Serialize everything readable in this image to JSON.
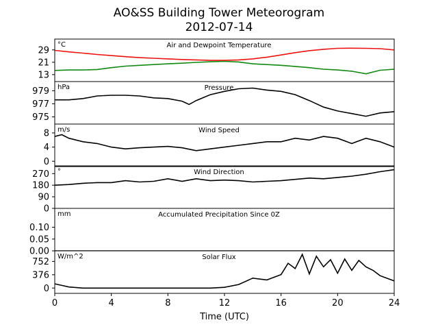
{
  "title": "AO&SS Building Tower Meteorogram",
  "subtitle": "2012-07-14",
  "chart_data": [
    {
      "type": "line",
      "title": "Air and Dewpoint Temperature",
      "unit": "°C",
      "xlabel": "",
      "ylabel": "°C",
      "xlim": [
        0,
        24
      ],
      "ylim": [
        8.5,
        36
      ],
      "yticks": [
        13,
        21,
        29
      ],
      "x": [
        0,
        1,
        2,
        3,
        4,
        5,
        6,
        7,
        8,
        9,
        10,
        11,
        12,
        13,
        14,
        15,
        16,
        17,
        18,
        19,
        20,
        21,
        22,
        23,
        24
      ],
      "series": [
        {
          "color": "#ee1111",
          "values": [
            28.7,
            27.7,
            26.9,
            26.0,
            25.3,
            24.6,
            24.0,
            23.6,
            23.2,
            22.8,
            22.5,
            22.2,
            22.2,
            22.5,
            23.2,
            24.3,
            25.7,
            27.2,
            28.5,
            29.4,
            30.0,
            30.1,
            30.0,
            29.8,
            29.0
          ]
        },
        {
          "color": "#118811",
          "values": [
            15.7,
            16.0,
            16.0,
            16.3,
            17.5,
            18.5,
            19.0,
            19.5,
            20.0,
            20.4,
            20.9,
            21.3,
            21.6,
            21.2,
            20.0,
            19.5,
            19.0,
            18.3,
            17.5,
            16.5,
            16.0,
            15.2,
            13.5,
            15.8,
            16.5
          ]
        }
      ]
    },
    {
      "type": "line",
      "title": "Pressure",
      "unit": "hPa",
      "xlabel": "",
      "ylabel": "hPa",
      "xlim": [
        0,
        24
      ],
      "ylim": [
        973.9,
        980.4
      ],
      "yticks": [
        975,
        977,
        979
      ],
      "x": [
        0,
        1,
        2,
        3,
        4,
        5,
        6,
        7,
        8,
        9,
        9.5,
        10,
        11,
        12,
        13,
        14,
        15,
        16,
        17,
        18,
        19,
        20,
        21,
        22,
        23,
        24
      ],
      "series": [
        {
          "color": "#000000",
          "values": [
            977.6,
            977.6,
            977.8,
            978.2,
            978.3,
            978.3,
            978.2,
            977.9,
            977.8,
            977.4,
            976.9,
            977.5,
            978.4,
            978.9,
            979.3,
            979.4,
            979.1,
            978.9,
            978.4,
            977.5,
            976.5,
            975.9,
            975.5,
            975.1,
            975.6,
            975.8
          ]
        }
      ]
    },
    {
      "type": "line",
      "title": "Wind Speed",
      "unit": "m/s",
      "xlabel": "",
      "ylabel": "m/s",
      "xlim": [
        0,
        24
      ],
      "ylim": [
        -1.5,
        10.5
      ],
      "yticks": [
        0,
        4,
        8
      ],
      "x": [
        0,
        0.5,
        1,
        2,
        3,
        4,
        5,
        6,
        7,
        8,
        9,
        10,
        11,
        12,
        13,
        14,
        15,
        16,
        17,
        18,
        19,
        20,
        21,
        22,
        23,
        24
      ],
      "series": [
        {
          "color": "#000000",
          "values": [
            7.0,
            7.5,
            6.5,
            5.5,
            5.0,
            4.0,
            3.5,
            3.8,
            4.0,
            4.2,
            3.8,
            3.0,
            3.5,
            4.0,
            4.5,
            5.0,
            5.5,
            5.5,
            6.5,
            6.0,
            7.0,
            6.5,
            5.0,
            6.5,
            5.5,
            4.0
          ]
        }
      ]
    },
    {
      "type": "line",
      "title": "Wind Direction",
      "unit": "°",
      "xlabel": "",
      "ylabel": "°",
      "xlim": [
        0,
        24
      ],
      "ylim": [
        0,
        330
      ],
      "yticks": [
        0,
        90,
        180,
        270
      ],
      "x": [
        0,
        1,
        2,
        3,
        4,
        5,
        6,
        7,
        8,
        9,
        10,
        11,
        12,
        13,
        14,
        15,
        16,
        17,
        18,
        19,
        20,
        21,
        22,
        23,
        24
      ],
      "series": [
        {
          "color": "#000000",
          "values": [
            180,
            185,
            195,
            200,
            200,
            215,
            205,
            210,
            230,
            210,
            230,
            215,
            220,
            215,
            205,
            210,
            215,
            225,
            235,
            230,
            240,
            250,
            265,
            285,
            300
          ]
        }
      ]
    },
    {
      "type": "line",
      "title": "Accumulated Precipitation Since 0Z",
      "unit": "mm",
      "xlabel": "",
      "ylabel": "mm",
      "xlim": [
        0,
        24
      ],
      "ylim": [
        0,
        0.18
      ],
      "yticks": [
        0.0,
        0.05,
        0.1
      ],
      "ytick_labels": [
        "0.00",
        "0.05",
        "0.10"
      ],
      "x": [
        0,
        24
      ],
      "series": [
        {
          "color": "#000000",
          "values": [
            0,
            0
          ]
        }
      ]
    },
    {
      "type": "line",
      "title": "Solar Flux",
      "unit": "W/m^2",
      "xlabel": "Time (UTC)",
      "ylabel": "W/m^2",
      "xlim": [
        0,
        24
      ],
      "ylim": [
        -150,
        1050
      ],
      "yticks": [
        0,
        376,
        752
      ],
      "xticks": [
        0,
        4,
        8,
        12,
        16,
        20,
        24
      ],
      "x": [
        0,
        1,
        2,
        3,
        4,
        5,
        6,
        7,
        8,
        9,
        10,
        11,
        12,
        13,
        14,
        15,
        16,
        16.5,
        17,
        17.5,
        18,
        18.5,
        19,
        19.5,
        20,
        20.5,
        21,
        21.5,
        22,
        22.5,
        23,
        24
      ],
      "series": [
        {
          "color": "#000000",
          "values": [
            120,
            30,
            0,
            0,
            0,
            0,
            0,
            0,
            0,
            0,
            0,
            0,
            20,
            100,
            280,
            230,
            380,
            700,
            550,
            950,
            400,
            900,
            600,
            800,
            420,
            820,
            500,
            780,
            600,
            500,
            350,
            200
          ]
        }
      ]
    }
  ]
}
